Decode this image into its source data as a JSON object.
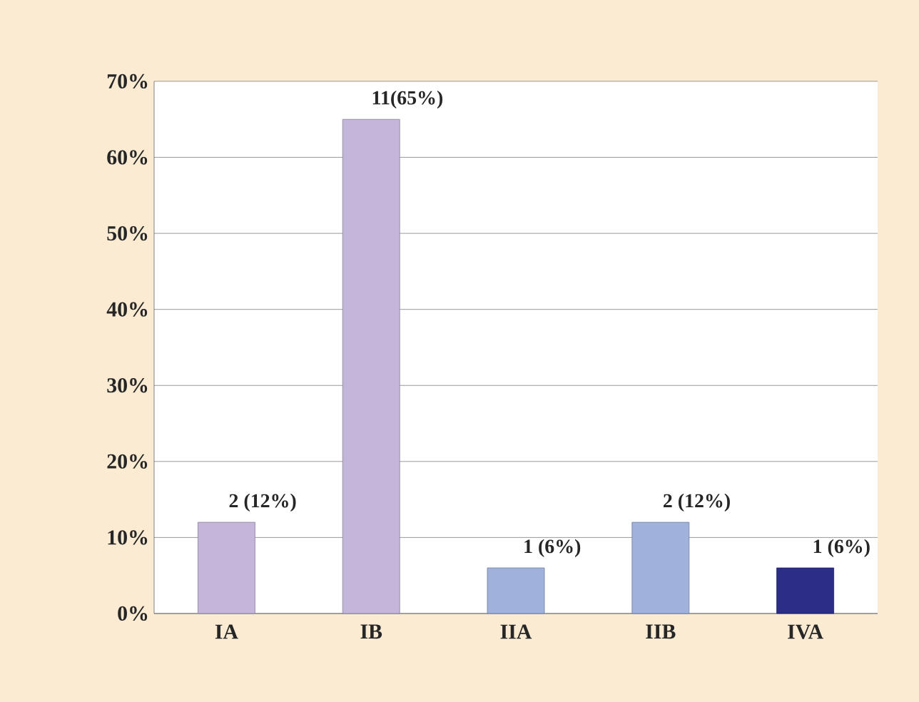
{
  "chart_data": {
    "type": "bar",
    "categories": [
      "IA",
      "IB",
      "IIA",
      "IIB",
      "IVA"
    ],
    "values": [
      12,
      65,
      6,
      12,
      6
    ],
    "colors": [
      "#c4b5da",
      "#c4b5da",
      "#a0b2dc",
      "#a0b2dc",
      "#2b2d86"
    ],
    "value_labels": [
      "2 (12%)",
      "11(65%)",
      "1 (6%)",
      "2 (12%)",
      "1 (6%)"
    ],
    "ylim": [
      0,
      70
    ],
    "yticks": [
      {
        "value": 0,
        "label": "0%"
      },
      {
        "value": 10,
        "label": "10%"
      },
      {
        "value": 20,
        "label": "20%"
      },
      {
        "value": 30,
        "label": "30%"
      },
      {
        "value": 40,
        "label": "40%"
      },
      {
        "value": 50,
        "label": "50%"
      },
      {
        "value": 60,
        "label": "60%"
      },
      {
        "value": 70,
        "label": "70%"
      }
    ],
    "grid": "y"
  }
}
